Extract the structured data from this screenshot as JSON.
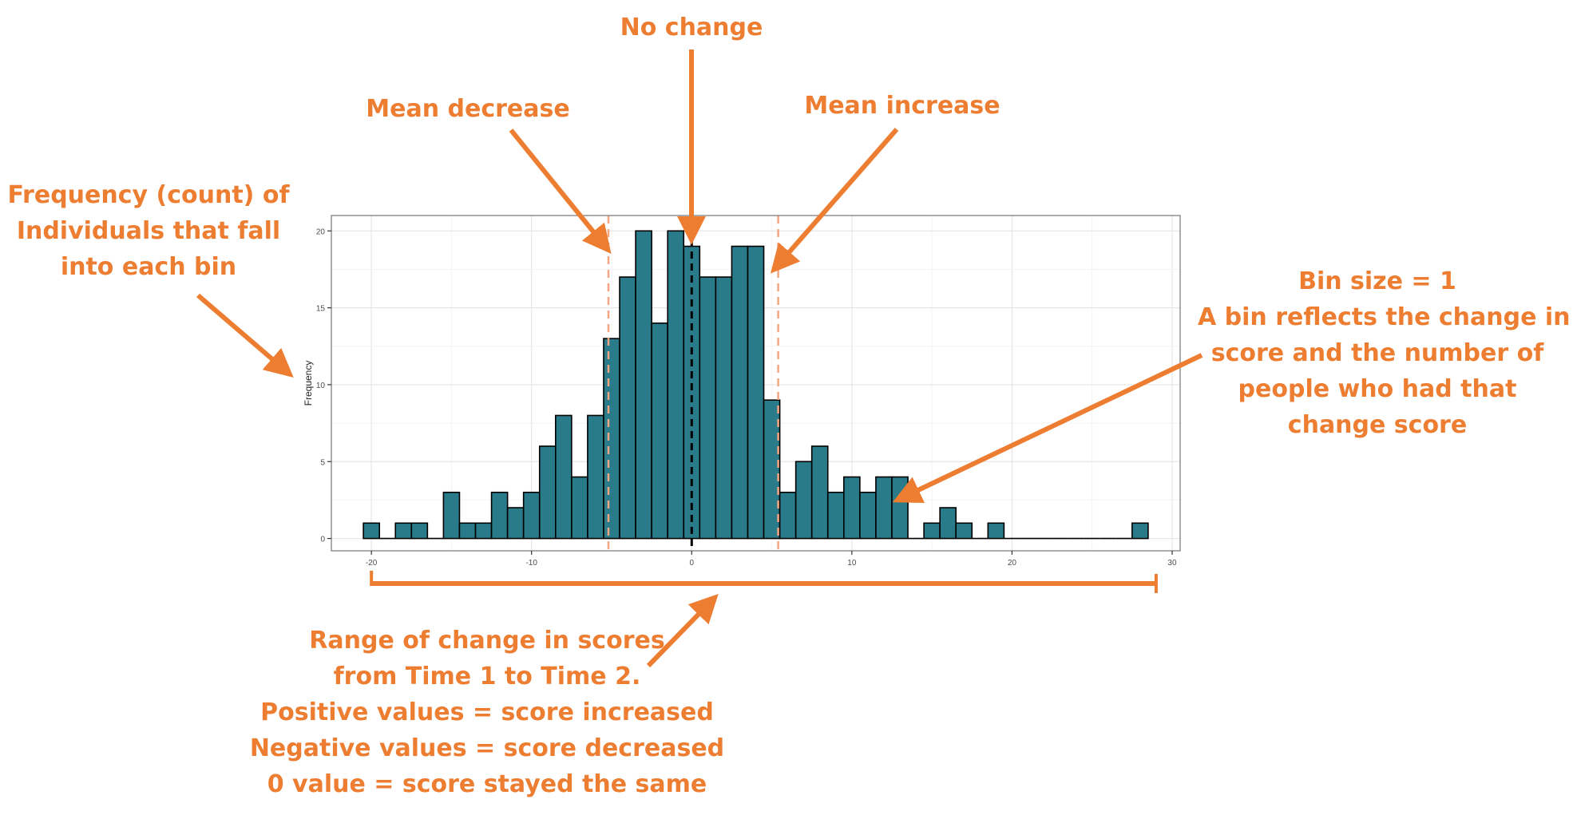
{
  "chart_data": {
    "type": "bar",
    "subtype": "histogram",
    "bin_width": 1,
    "bins": [
      {
        "x": -20,
        "count": 1
      },
      {
        "x": -19,
        "count": 0
      },
      {
        "x": -18,
        "count": 1
      },
      {
        "x": -17,
        "count": 1
      },
      {
        "x": -16,
        "count": 0
      },
      {
        "x": -15,
        "count": 3
      },
      {
        "x": -14,
        "count": 1
      },
      {
        "x": -13,
        "count": 1
      },
      {
        "x": -12,
        "count": 3
      },
      {
        "x": -11,
        "count": 2
      },
      {
        "x": -10,
        "count": 3
      },
      {
        "x": -9,
        "count": 6
      },
      {
        "x": -8,
        "count": 8
      },
      {
        "x": -7,
        "count": 4
      },
      {
        "x": -6,
        "count": 8
      },
      {
        "x": -5,
        "count": 13
      },
      {
        "x": -4,
        "count": 17
      },
      {
        "x": -3,
        "count": 20
      },
      {
        "x": -2,
        "count": 14
      },
      {
        "x": -1,
        "count": 20
      },
      {
        "x": 0,
        "count": 19
      },
      {
        "x": 1,
        "count": 17
      },
      {
        "x": 2,
        "count": 17
      },
      {
        "x": 3,
        "count": 19
      },
      {
        "x": 4,
        "count": 19
      },
      {
        "x": 5,
        "count": 9
      },
      {
        "x": 6,
        "count": 3
      },
      {
        "x": 7,
        "count": 5
      },
      {
        "x": 8,
        "count": 6
      },
      {
        "x": 9,
        "count": 3
      },
      {
        "x": 10,
        "count": 4
      },
      {
        "x": 11,
        "count": 3
      },
      {
        "x": 12,
        "count": 4
      },
      {
        "x": 13,
        "count": 4
      },
      {
        "x": 14,
        "count": 0
      },
      {
        "x": 15,
        "count": 1
      },
      {
        "x": 16,
        "count": 2
      },
      {
        "x": 17,
        "count": 1
      },
      {
        "x": 18,
        "count": 0
      },
      {
        "x": 19,
        "count": 1
      },
      {
        "x": 20,
        "count": 0
      },
      {
        "x": 21,
        "count": 0
      },
      {
        "x": 22,
        "count": 0
      },
      {
        "x": 23,
        "count": 0
      },
      {
        "x": 24,
        "count": 0
      },
      {
        "x": 25,
        "count": 0
      },
      {
        "x": 26,
        "count": 0
      },
      {
        "x": 27,
        "count": 0
      },
      {
        "x": 28,
        "count": 1
      }
    ],
    "xlim": [
      -22.5,
      30.5
    ],
    "ylim": [
      -0.8,
      21
    ],
    "x_ticks": [
      -20,
      -10,
      0,
      10,
      20,
      30
    ],
    "y_ticks": [
      0,
      5,
      10,
      15,
      20
    ],
    "x_tick_labels": [
      "-20",
      "-10",
      "0",
      "10",
      "20",
      "30"
    ],
    "y_tick_labels": [
      "0",
      "5",
      "10",
      "15",
      "20"
    ],
    "ylabel": "Frequency",
    "xlabel": "",
    "grid": true,
    "bar_color": "#2a7b8a",
    "bar_edge_color": "#000000",
    "reference_lines": [
      {
        "x": -5.2,
        "style": "dashed",
        "color": "#f4a582"
      },
      {
        "x": 0,
        "style": "dashed",
        "color": "#000000"
      },
      {
        "x": 5.4,
        "style": "dashed",
        "color": "#f4a582"
      }
    ],
    "range_bracket": [
      -20,
      29
    ]
  },
  "annotations": {
    "color": "#ed7d31",
    "no_change": "No change",
    "mean_decrease": "Mean decrease",
    "mean_increase": "Mean increase",
    "frequency_lines": [
      "Frequency (count) of",
      "Individuals that fall",
      "into each bin"
    ],
    "bin_lines": [
      "Bin size = 1",
      "A bin reflects the change in",
      "score and the number of",
      "people who had that",
      "change score"
    ],
    "range_lines": [
      "Range of change in scores",
      "from Time 1 to Time 2.",
      "Positive values = score increased",
      "Negative values = score decreased",
      "0 value = score stayed the same"
    ]
  }
}
